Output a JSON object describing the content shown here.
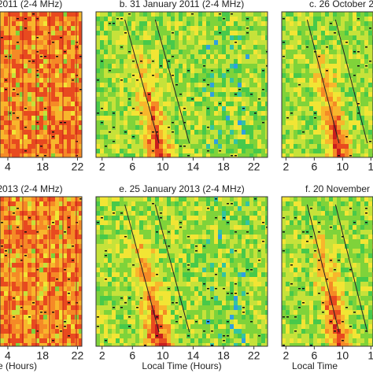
{
  "chart_data": [
    {
      "type": "heatmap",
      "title": "2011 (2-4 MHz)",
      "xlim": [
        13.1,
        22.5
      ],
      "xticks": [
        {
          "value": 14,
          "label": "4"
        },
        18,
        22
      ]
    },
    {
      "type": "heatmap",
      "title": "b. 31 January 2011 (2-4 MHz)",
      "xlim": [
        1.2,
        23.8
      ],
      "xticks": [
        2,
        6,
        10,
        14,
        18,
        22
      ]
    },
    {
      "type": "heatmap",
      "title": "c. 26 October 2",
      "xlim": [
        1.4,
        14.3
      ],
      "xticks": [
        2,
        6,
        10,
        {
          "value": 14,
          "label": "1"
        }
      ]
    },
    {
      "type": "heatmap",
      "title": "2013 (2-4 MHz)",
      "xlabel": "e (Hours)",
      "xlim": [
        13.1,
        22.5
      ],
      "xticks": [
        {
          "value": 14,
          "label": "4"
        },
        18,
        22
      ]
    },
    {
      "type": "heatmap",
      "title": "e. 25 January 2013 (2-4 MHz)",
      "xlabel": "Local Time (Hours)",
      "xlim": [
        1.2,
        23.8
      ],
      "xticks": [
        2,
        6,
        10,
        14,
        18,
        22
      ]
    },
    {
      "type": "heatmap",
      "title": "f. 20 November 2",
      "xlabel": "Local Time",
      "xlim": [
        1.4,
        14.3
      ],
      "xticks": [
        2,
        6,
        10,
        {
          "value": 14,
          "label": "1"
        }
      ]
    }
  ]
}
